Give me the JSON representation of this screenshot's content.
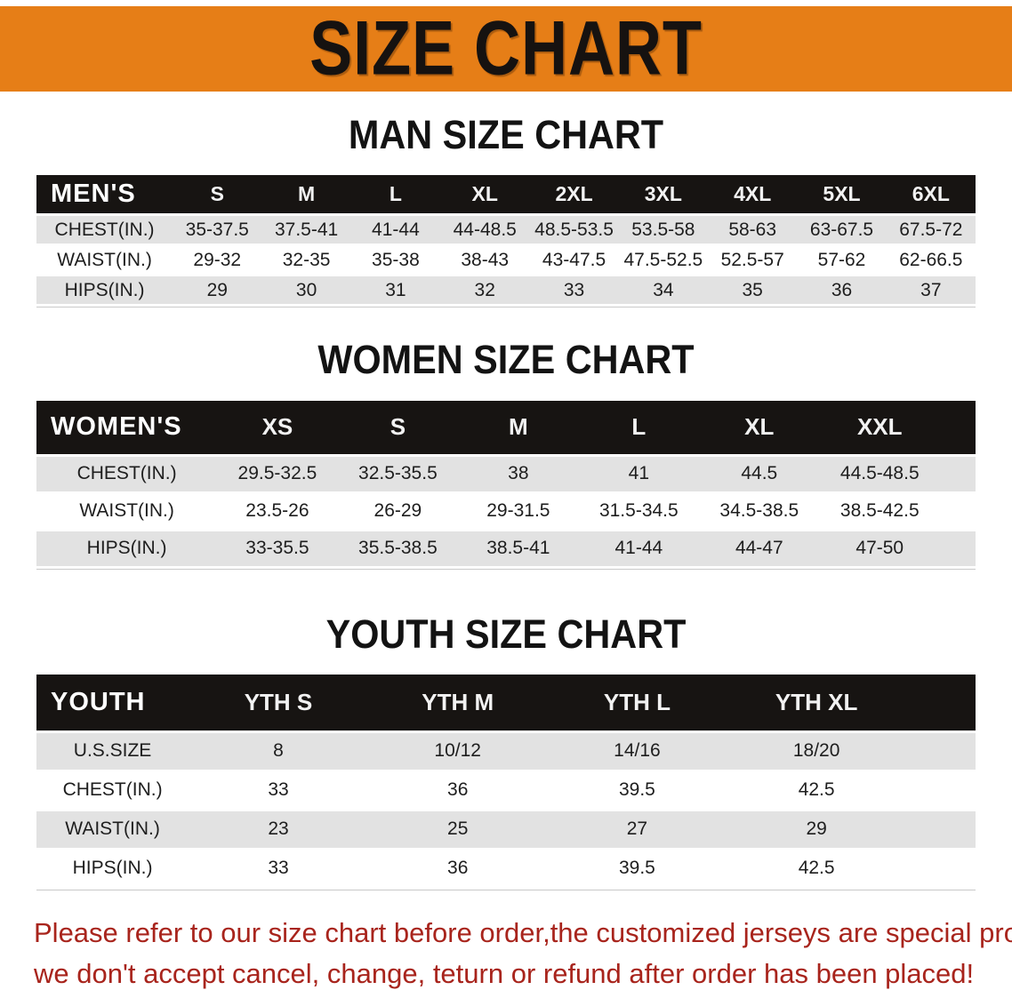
{
  "banner": {
    "title": "SIZE CHART"
  },
  "colors": {
    "banner_bg": "#e67e17",
    "table_header_bg": "#171412",
    "row_stripe_gray": "#e2e2e2",
    "notice_text": "#a8241c"
  },
  "sections": [
    {
      "heading": "MAN SIZE CHART",
      "table": {
        "group_label": "MEN'S",
        "columns": [
          "S",
          "M",
          "L",
          "XL",
          "2XL",
          "3XL",
          "4XL",
          "5XL",
          "6XL"
        ],
        "rows": [
          {
            "label": "CHEST(IN.)",
            "values": [
              "35-37.5",
              "37.5-41",
              "41-44",
              "44-48.5",
              "48.5-53.5",
              "53.5-58",
              "58-63",
              "63-67.5",
              "67.5-72"
            ]
          },
          {
            "label": "WAIST(IN.)",
            "values": [
              "29-32",
              "32-35",
              "35-38",
              "38-43",
              "43-47.5",
              "47.5-52.5",
              "52.5-57",
              "57-62",
              "62-66.5"
            ]
          },
          {
            "label": "HIPS(IN.)",
            "values": [
              "29",
              "30",
              "31",
              "32",
              "33",
              "34",
              "35",
              "36",
              "37"
            ]
          }
        ]
      }
    },
    {
      "heading": "WOMEN SIZE CHART",
      "table": {
        "group_label": "WOMEN'S",
        "columns": [
          "XS",
          "S",
          "M",
          "L",
          "XL",
          "XXL"
        ],
        "rows": [
          {
            "label": "CHEST(IN.)",
            "values": [
              "29.5-32.5",
              "32.5-35.5",
              "38",
              "41",
              "44.5",
              "44.5-48.5"
            ]
          },
          {
            "label": "WAIST(IN.)",
            "values": [
              "23.5-26",
              "26-29",
              "29-31.5",
              "31.5-34.5",
              "34.5-38.5",
              "38.5-42.5"
            ]
          },
          {
            "label": "HIPS(IN.)",
            "values": [
              "33-35.5",
              "35.5-38.5",
              "38.5-41",
              "41-44",
              "44-47",
              "47-50"
            ]
          }
        ]
      }
    },
    {
      "heading": "YOUTH SIZE CHART",
      "table": {
        "group_label": "YOUTH",
        "columns": [
          "YTH S",
          "YTH M",
          "YTH L",
          "YTH XL"
        ],
        "rows": [
          {
            "label": "U.S.SIZE",
            "values": [
              "8",
              "10/12",
              "14/16",
              "18/20"
            ]
          },
          {
            "label": "CHEST(IN.)",
            "values": [
              "33",
              "36",
              "39.5",
              "42.5"
            ]
          },
          {
            "label": "WAIST(IN.)",
            "values": [
              "23",
              "25",
              "27",
              "29"
            ]
          },
          {
            "label": "HIPS(IN.)",
            "values": [
              "33",
              "36",
              "39.5",
              "42.5"
            ]
          }
        ]
      }
    }
  ],
  "footer": {
    "line1": "Please refer to our size chart before order,the customized jerseys are special products,",
    "line2": "we don't accept cancel, change, teturn or refund after order has been placed!"
  }
}
